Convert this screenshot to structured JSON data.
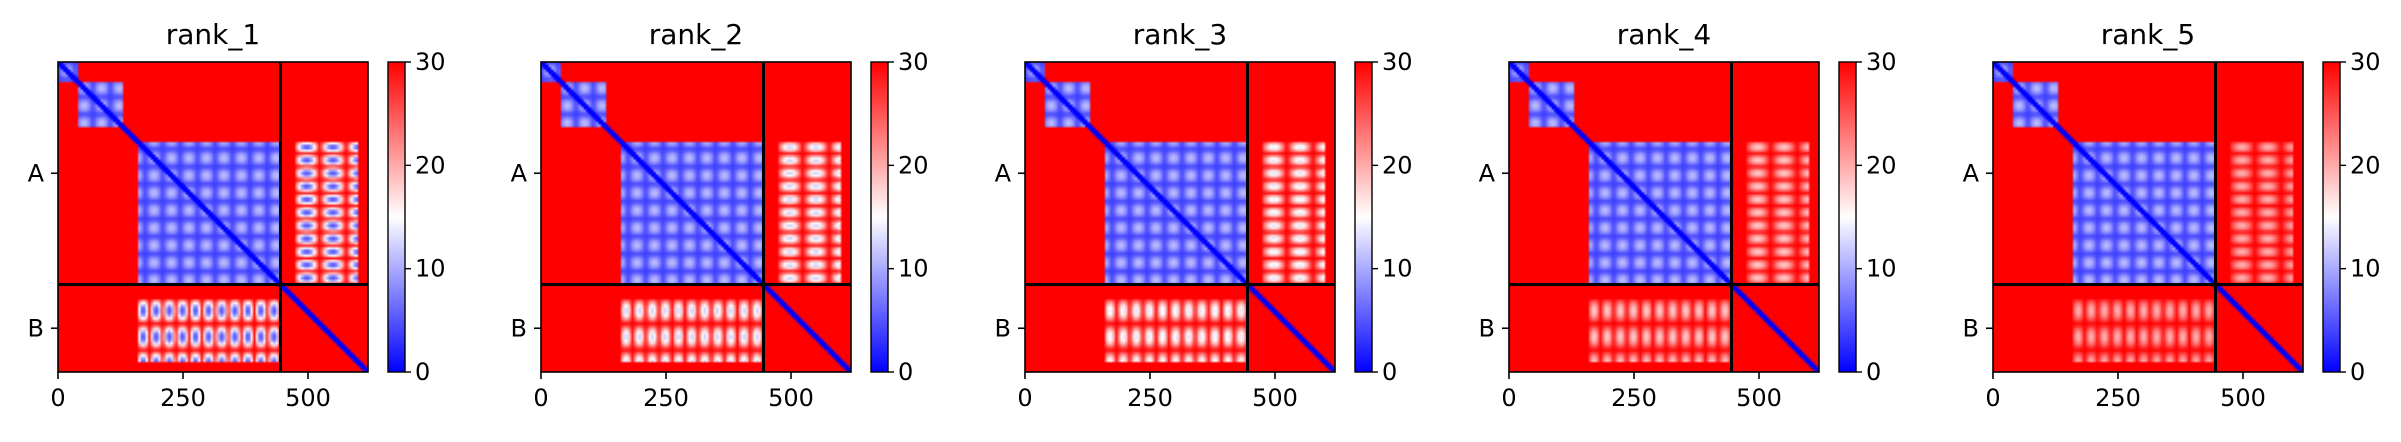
{
  "colors": {
    "low": "#0000ff",
    "mid": "#ffffff",
    "high": "#ff0000",
    "axis": "#000000",
    "background": "#ffffff"
  },
  "chart_data": [
    {
      "type": "heatmap",
      "title": "rank_1",
      "x_range": [
        0,
        620
      ],
      "y_range": [
        0,
        620
      ],
      "x_ticks": [
        0,
        250,
        500
      ],
      "chains": [
        {
          "name": "A",
          "start": 0,
          "end": 445
        },
        {
          "name": "B",
          "start": 445,
          "end": 620
        }
      ],
      "domains": [
        [
          0,
          40
        ],
        [
          40,
          130
        ],
        [
          160,
          445
        ]
      ],
      "cross_intensity": 0.85,
      "colorbar": {
        "min": 0,
        "max": 30,
        "ticks": [
          0,
          10,
          20,
          30
        ]
      }
    },
    {
      "type": "heatmap",
      "title": "rank_2",
      "x_range": [
        0,
        620
      ],
      "y_range": [
        0,
        620
      ],
      "x_ticks": [
        0,
        250,
        500
      ],
      "chains": [
        {
          "name": "A",
          "start": 0,
          "end": 445
        },
        {
          "name": "B",
          "start": 445,
          "end": 620
        }
      ],
      "domains": [
        [
          0,
          40
        ],
        [
          40,
          130
        ],
        [
          160,
          445
        ]
      ],
      "cross_intensity": 0.6,
      "colorbar": {
        "min": 0,
        "max": 30,
        "ticks": [
          0,
          10,
          20,
          30
        ]
      }
    },
    {
      "type": "heatmap",
      "title": "rank_3",
      "x_range": [
        0,
        620
      ],
      "y_range": [
        0,
        620
      ],
      "x_ticks": [
        0,
        250,
        500
      ],
      "chains": [
        {
          "name": "A",
          "start": 0,
          "end": 445
        },
        {
          "name": "B",
          "start": 445,
          "end": 620
        }
      ],
      "domains": [
        [
          0,
          40
        ],
        [
          40,
          130
        ],
        [
          160,
          445
        ]
      ],
      "cross_intensity": 0.55,
      "colorbar": {
        "min": 0,
        "max": 30,
        "ticks": [
          0,
          10,
          20,
          30
        ]
      }
    },
    {
      "type": "heatmap",
      "title": "rank_4",
      "x_range": [
        0,
        620
      ],
      "y_range": [
        0,
        620
      ],
      "x_ticks": [
        0,
        250,
        500
      ],
      "chains": [
        {
          "name": "A",
          "start": 0,
          "end": 445
        },
        {
          "name": "B",
          "start": 445,
          "end": 620
        }
      ],
      "domains": [
        [
          0,
          40
        ],
        [
          40,
          130
        ],
        [
          160,
          445
        ]
      ],
      "cross_intensity": 0.4,
      "colorbar": {
        "min": 0,
        "max": 30,
        "ticks": [
          0,
          10,
          20,
          30
        ]
      }
    },
    {
      "type": "heatmap",
      "title": "rank_5",
      "x_range": [
        0,
        620
      ],
      "y_range": [
        0,
        620
      ],
      "x_ticks": [
        0,
        250,
        500
      ],
      "chains": [
        {
          "name": "A",
          "start": 0,
          "end": 445
        },
        {
          "name": "B",
          "start": 445,
          "end": 620
        }
      ],
      "domains": [
        [
          0,
          40
        ],
        [
          40,
          130
        ],
        [
          160,
          445
        ]
      ],
      "cross_intensity": 0.35,
      "colorbar": {
        "min": 0,
        "max": 30,
        "ticks": [
          0,
          10,
          20,
          30
        ]
      }
    }
  ]
}
